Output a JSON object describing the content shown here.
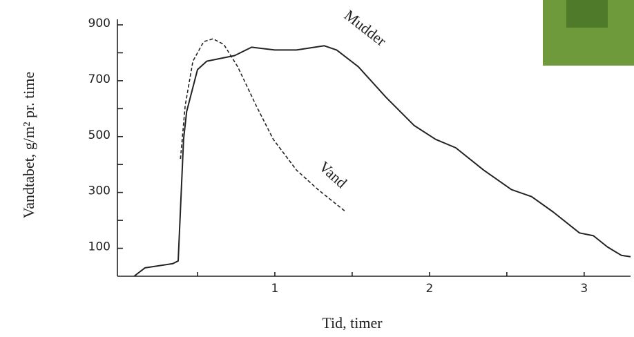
{
  "chart_data": {
    "type": "line",
    "ylabel": "Vandtabet, g/m² pr. time",
    "xlabel": "Tid, timer",
    "xlim": [
      0,
      3.3
    ],
    "ylim": [
      0,
      900
    ],
    "xticks": [
      1,
      2,
      3
    ],
    "xminor_ticks": [
      0.5,
      1.5,
      2.5
    ],
    "yticks": [
      100,
      300,
      500,
      700,
      900
    ],
    "yminor_ticks": [
      200,
      400,
      600,
      800
    ],
    "series": [
      {
        "name": "Mudder",
        "color": "#222222",
        "dash": "solid",
        "x": [
          0.09,
          0.16,
          0.34,
          0.375,
          0.41,
          0.43,
          0.5,
          0.56,
          0.74,
          0.85,
          1.0,
          1.14,
          1.32,
          1.4,
          1.54,
          1.72,
          1.9,
          2.04,
          2.17,
          2.35,
          2.53,
          2.66,
          2.8,
          2.97,
          3.06,
          3.15,
          3.24,
          3.3
        ],
        "values": [
          0,
          30,
          45,
          55,
          490,
          590,
          740,
          770,
          790,
          820,
          810,
          810,
          825,
          810,
          750,
          640,
          540,
          490,
          460,
          380,
          310,
          285,
          230,
          155,
          145,
          105,
          75,
          70
        ]
      },
      {
        "name": "Vand",
        "color": "#222222",
        "dash": "dashed",
        "x": [
          0.39,
          0.42,
          0.47,
          0.54,
          0.6,
          0.67,
          0.76,
          0.88,
          0.99,
          1.14,
          1.28,
          1.46
        ],
        "values": [
          420,
          610,
          770,
          840,
          850,
          830,
          750,
          610,
          490,
          380,
          310,
          230
        ]
      }
    ]
  }
}
